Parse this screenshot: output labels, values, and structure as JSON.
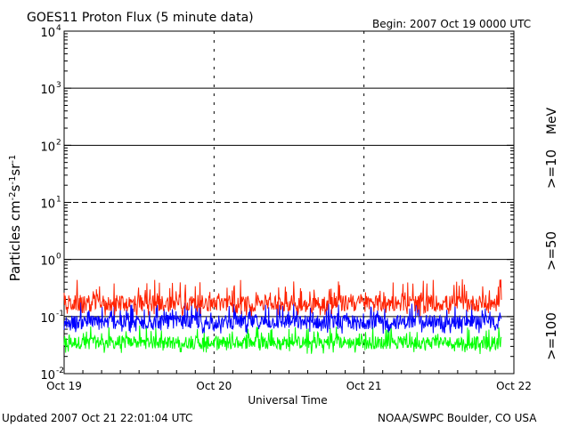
{
  "header": {
    "title": "GOES11 Proton Flux (5 minute data)",
    "begin": "Begin: 2007 Oct 19 0000 UTC"
  },
  "footer": {
    "updated": "Updated 2007 Oct 21 22:01:04 UTC",
    "source": "NOAA/SWPC Boulder, CO USA"
  },
  "colors": {
    "ge10": "#ff2200",
    "ge50": "#0000ff",
    "ge100": "#00ff00",
    "axis": "#000000",
    "background": "#ffffff"
  },
  "chart_data": {
    "type": "line",
    "title": "GOES11 Proton Flux (5 minute data)",
    "xlabel": "Universal Time",
    "ylabel": "Particles cm-2s-1sr-1",
    "yscale": "log",
    "ylim": [
      0.01,
      10000
    ],
    "xlim": [
      "2007-10-19 00:00",
      "2007-10-22 00:00"
    ],
    "x_ticks": [
      "Oct 19",
      "Oct 20",
      "Oct 21",
      "Oct 22"
    ],
    "y_ticks": [
      {
        "base": "10",
        "exp": "-2",
        "value": 0.01
      },
      {
        "base": "10",
        "exp": "-1",
        "value": 0.1
      },
      {
        "base": "10",
        "exp": "0",
        "value": 1
      },
      {
        "base": "10",
        "exp": "1",
        "value": 10
      },
      {
        "base": "10",
        "exp": "2",
        "value": 100
      },
      {
        "base": "10",
        "exp": "3",
        "value": 1000
      },
      {
        "base": "10",
        "exp": "4",
        "value": 10000
      }
    ],
    "threshold_lines": [
      {
        "value": 0.1,
        "style": "solid"
      },
      {
        "value": 1,
        "style": "solid"
      },
      {
        "value": 10,
        "style": "dashed"
      },
      {
        "value": 100,
        "style": "solid"
      },
      {
        "value": 1000,
        "style": "solid"
      }
    ],
    "unit_label": "MeV",
    "data_end": "2007-10-21 22:00",
    "series": [
      {
        "name": ">=10",
        "color": "#ff2200",
        "typical": 0.17,
        "min": 0.1,
        "max": 0.45
      },
      {
        "name": ">=50",
        "color": "#0000ff",
        "typical": 0.08,
        "min": 0.05,
        "max": 0.18
      },
      {
        "name": ">=100",
        "color": "#00ff00",
        "typical": 0.035,
        "min": 0.022,
        "max": 0.07
      }
    ]
  }
}
